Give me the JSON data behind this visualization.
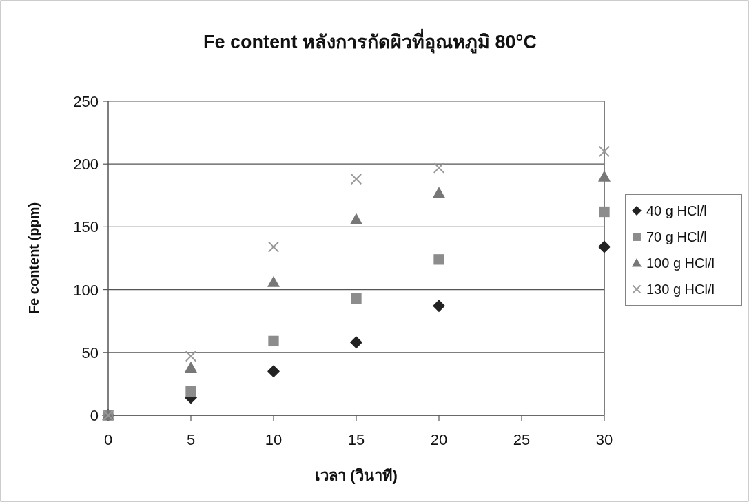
{
  "chart_data": {
    "type": "scatter",
    "title": "Fe content หลังการกัดผิวที่อุณหภูมิ 80°C",
    "xlabel": "เวลา (วินาที)",
    "ylabel": "Fe content (ppm)",
    "xlim": [
      0,
      30
    ],
    "xticks": [
      0,
      5,
      10,
      15,
      20,
      25,
      30
    ],
    "ylim": [
      0,
      250
    ],
    "yticks": [
      0,
      50,
      100,
      150,
      200,
      250
    ],
    "grid": "y",
    "legend": "right",
    "x": [
      0,
      5,
      10,
      15,
      20,
      30
    ],
    "series": [
      {
        "name": "40 g HCl/l",
        "color": "#222222",
        "marker": "diamond",
        "values": [
          0,
          14,
          35,
          58,
          87,
          134
        ]
      },
      {
        "name": "70 g HCl/l",
        "color": "#8c8c8c",
        "marker": "square",
        "values": [
          0,
          19,
          59,
          93,
          124,
          162
        ]
      },
      {
        "name": "100 g HCl/l",
        "color": "#777777",
        "marker": "triangle",
        "values": [
          0,
          38,
          106,
          156,
          177,
          190
        ]
      },
      {
        "name": "130 g HCl/l",
        "color": "#999999",
        "marker": "cross",
        "values": [
          0,
          47,
          134,
          188,
          197,
          210
        ]
      }
    ]
  }
}
